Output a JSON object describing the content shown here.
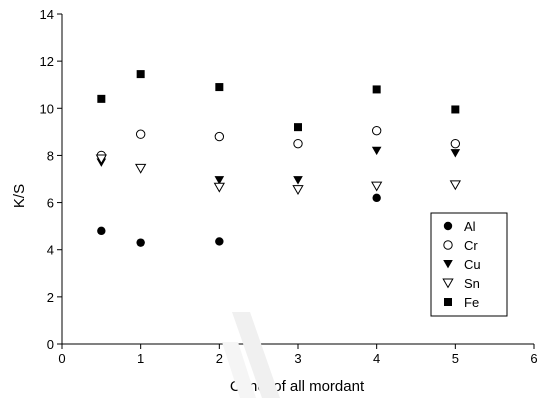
{
  "chart_data": {
    "type": "scatter",
    "title": "",
    "xlabel": "Conc. of all mordant",
    "ylabel": "K/S",
    "xlim": [
      0,
      6
    ],
    "ylim": [
      0,
      14
    ],
    "xticks": [
      "0",
      "1",
      "2",
      "3",
      "4",
      "5",
      "6"
    ],
    "yticks": [
      "0",
      "2",
      "4",
      "6",
      "8",
      "10",
      "12",
      "14"
    ],
    "grid": false,
    "legend_position": "bottom-right",
    "series": [
      {
        "name": "Al",
        "marker": "filled-circle",
        "x": [
          0.5,
          1,
          2,
          4
        ],
        "y": [
          4.8,
          4.3,
          4.35,
          6.2
        ]
      },
      {
        "name": "Cr",
        "marker": "open-circle",
        "x": [
          0.5,
          1,
          2,
          3,
          4,
          5
        ],
        "y": [
          8.0,
          8.9,
          8.8,
          8.5,
          9.05,
          8.5
        ]
      },
      {
        "name": "Cu",
        "marker": "filled-triangle-down",
        "x": [
          0.5,
          2,
          3,
          4,
          5
        ],
        "y": [
          7.7,
          6.95,
          6.95,
          8.2,
          8.1
        ]
      },
      {
        "name": "Sn",
        "marker": "open-triangle-down",
        "x": [
          0.5,
          1,
          2,
          3,
          4,
          5
        ],
        "y": [
          7.85,
          7.45,
          6.65,
          6.55,
          6.7,
          6.75
        ]
      },
      {
        "name": "Fe",
        "marker": "filled-square",
        "x": [
          0.5,
          1,
          2,
          3,
          4,
          5
        ],
        "y": [
          10.4,
          11.45,
          10.9,
          9.2,
          10.8,
          9.95
        ]
      }
    ]
  }
}
